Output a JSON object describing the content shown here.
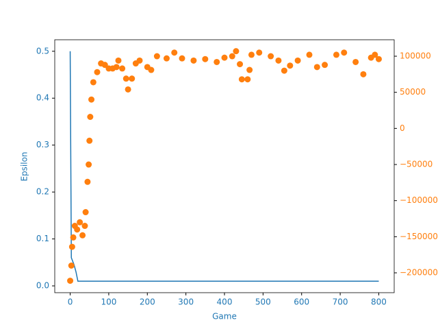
{
  "chart_data": {
    "type": "line_scatter",
    "x_label": "Game",
    "y_label": "Epsilon",
    "xlim": [
      -40,
      840
    ],
    "xticks": [
      0,
      100,
      200,
      300,
      400,
      500,
      600,
      700,
      800
    ],
    "ylim": [
      -0.0145,
      0.5245
    ],
    "yticks": [
      {
        "value": 0,
        "label": "0.0"
      },
      0.1,
      0.2,
      0.3,
      0.4,
      0.5
    ],
    "y2lim": [
      -227500,
      122800
    ],
    "y2ticks": [
      {
        "value": -200000,
        "label": "−200000"
      },
      {
        "value": -150000,
        "label": "−150000"
      },
      {
        "value": -100000,
        "label": "−100000"
      },
      {
        "value": -50000,
        "label": "−50000"
      },
      0,
      50000,
      100000
    ],
    "series": [
      {
        "type": "line",
        "color": "#1f77b4",
        "x": [
          0,
          3,
          10,
          15,
          20,
          800
        ],
        "values": [
          0.5,
          0.06,
          0.045,
          0.03,
          0.01,
          0.01
        ]
      },
      {
        "type": "scatter",
        "axis": "y2",
        "color": "#ff7f0e",
        "x": [
          0,
          3,
          5,
          8,
          12,
          18,
          25,
          32,
          38,
          40,
          45,
          48,
          50,
          52,
          55,
          60,
          70,
          80,
          90,
          100,
          110,
          120,
          125,
          135,
          145,
          150,
          160,
          170,
          180,
          200,
          210,
          225,
          250,
          270,
          290,
          320,
          350,
          380,
          400,
          420,
          430,
          440,
          445,
          460,
          465,
          470,
          490,
          520,
          540,
          555,
          570,
          590,
          620,
          640,
          660,
          690,
          710,
          740,
          760,
          780,
          790,
          800
        ],
        "values": [
          -211000,
          -190000,
          -164000,
          -151000,
          -135000,
          -140000,
          -130000,
          -148000,
          -135000,
          -116000,
          -74000,
          -50000,
          -17000,
          16000,
          40000,
          64000,
          78000,
          90000,
          88000,
          83000,
          83000,
          85000,
          94000,
          83000,
          69000,
          54000,
          69000,
          90000,
          94000,
          85000,
          81000,
          100000,
          97000,
          105000,
          97000,
          94000,
          96000,
          92000,
          98000,
          100000,
          107000,
          89000,
          68000,
          68000,
          81000,
          102000,
          105000,
          100000,
          94000,
          80000,
          87000,
          94000,
          102000,
          85000,
          88000,
          102000,
          105000,
          92000,
          75000,
          98000,
          102000,
          96000
        ]
      }
    ]
  }
}
